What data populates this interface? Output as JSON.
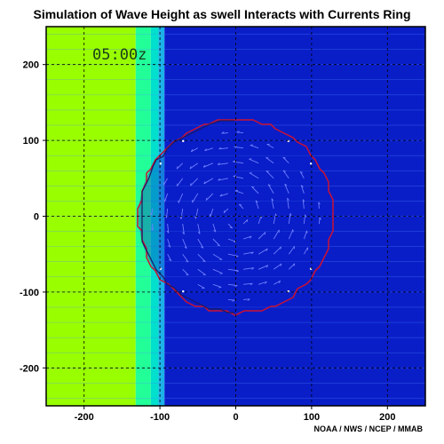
{
  "title": "Simulation of Wave Height as swell Interacts with Currents Ring",
  "credit": "NOAA / NWS / NCEP / MMAB",
  "time_label": "05:00z",
  "chart_data": {
    "type": "heatmap",
    "title": "Simulation of Wave Height as swell Interacts with Currents Ring",
    "xlabel": "",
    "ylabel": "",
    "xlim": [
      -250,
      250
    ],
    "ylim": [
      -250,
      250
    ],
    "xticks": [
      -200,
      -100,
      0,
      100,
      200
    ],
    "yticks": [
      200,
      100,
      0,
      -100,
      -200
    ],
    "x_tick_labels": [
      "-200",
      "-100",
      "0",
      "100",
      "200"
    ],
    "y_tick_labels": [
      "200",
      "100",
      "0",
      "-100",
      "-200"
    ],
    "grid": true,
    "bands": [
      {
        "x0": -250,
        "x1": -132,
        "color": "#99ff00"
      },
      {
        "x0": -132,
        "x1": -112,
        "color": "#22ff99"
      },
      {
        "x0": -112,
        "x1": -102,
        "color": "#00e0cc"
      },
      {
        "x0": -102,
        "x1": -94,
        "color": "#1ab2e8"
      },
      {
        "x0": -94,
        "x1": 250,
        "color": "#0a1ec8"
      }
    ],
    "current_ring": {
      "center": [
        0,
        0
      ],
      "radius": 128,
      "edge_color": "#cc1133",
      "vector_color": "#6f7fff"
    },
    "colors": {
      "background": "#0a1ec8",
      "grid": "#000000",
      "ring": "#cc1133",
      "vectors": "#6f7fff"
    }
  }
}
